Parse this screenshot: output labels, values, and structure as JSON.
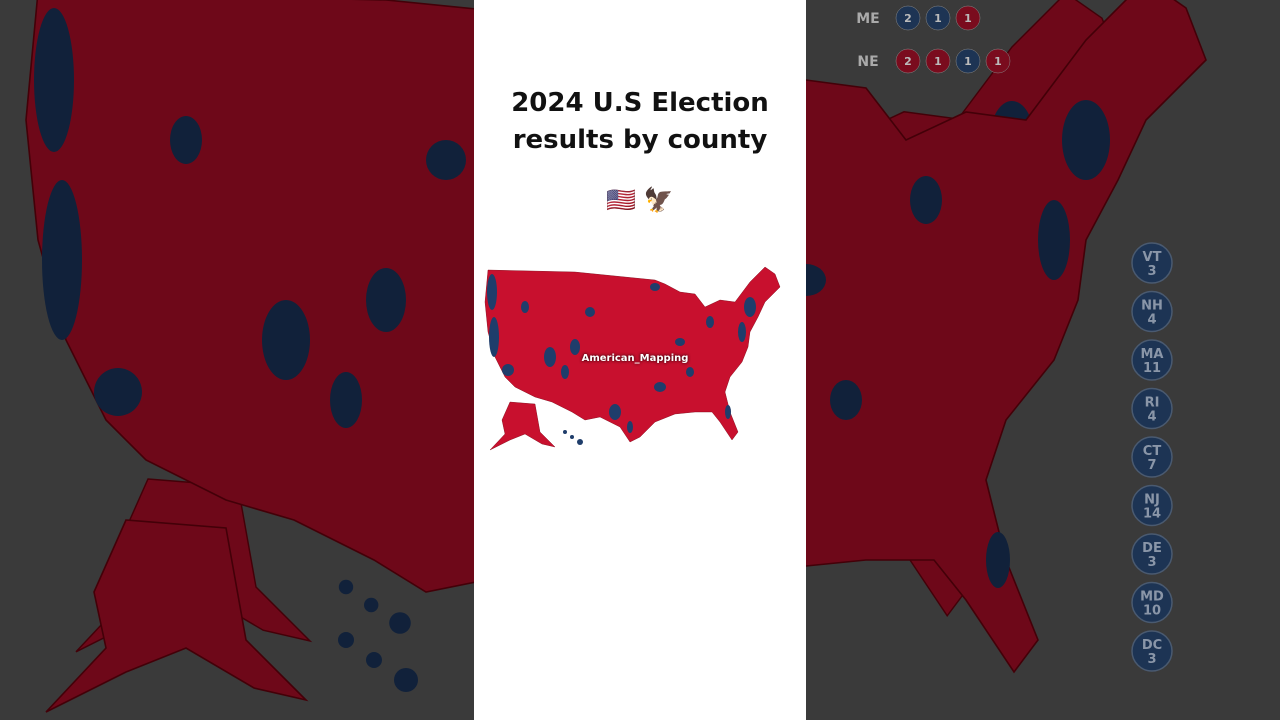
{
  "header": {
    "title_line1": "2024 U.S Election",
    "title_line2": "results by county",
    "emoji": "🇺🇸 🦅"
  },
  "map": {
    "watermark": "American_Mapping"
  },
  "split_states": [
    {
      "state": "ME",
      "districts": [
        {
          "label": "2",
          "party": "D"
        },
        {
          "label": "1",
          "party": "D"
        },
        {
          "label": "1",
          "party": "R"
        }
      ]
    },
    {
      "state": "NE",
      "districts": [
        {
          "label": "2",
          "party": "R"
        },
        {
          "label": "1",
          "party": "R"
        },
        {
          "label": "1",
          "party": "D"
        },
        {
          "label": "1",
          "party": "R"
        }
      ]
    }
  ],
  "small_states": [
    {
      "state": "VT",
      "votes": 3
    },
    {
      "state": "NH",
      "votes": 4
    },
    {
      "state": "MA",
      "votes": 11
    },
    {
      "state": "RI",
      "votes": 4
    },
    {
      "state": "CT",
      "votes": 7
    },
    {
      "state": "NJ",
      "votes": 14
    },
    {
      "state": "DE",
      "votes": 3
    },
    {
      "state": "MD",
      "votes": 10
    },
    {
      "state": "DC",
      "votes": 3
    }
  ]
}
